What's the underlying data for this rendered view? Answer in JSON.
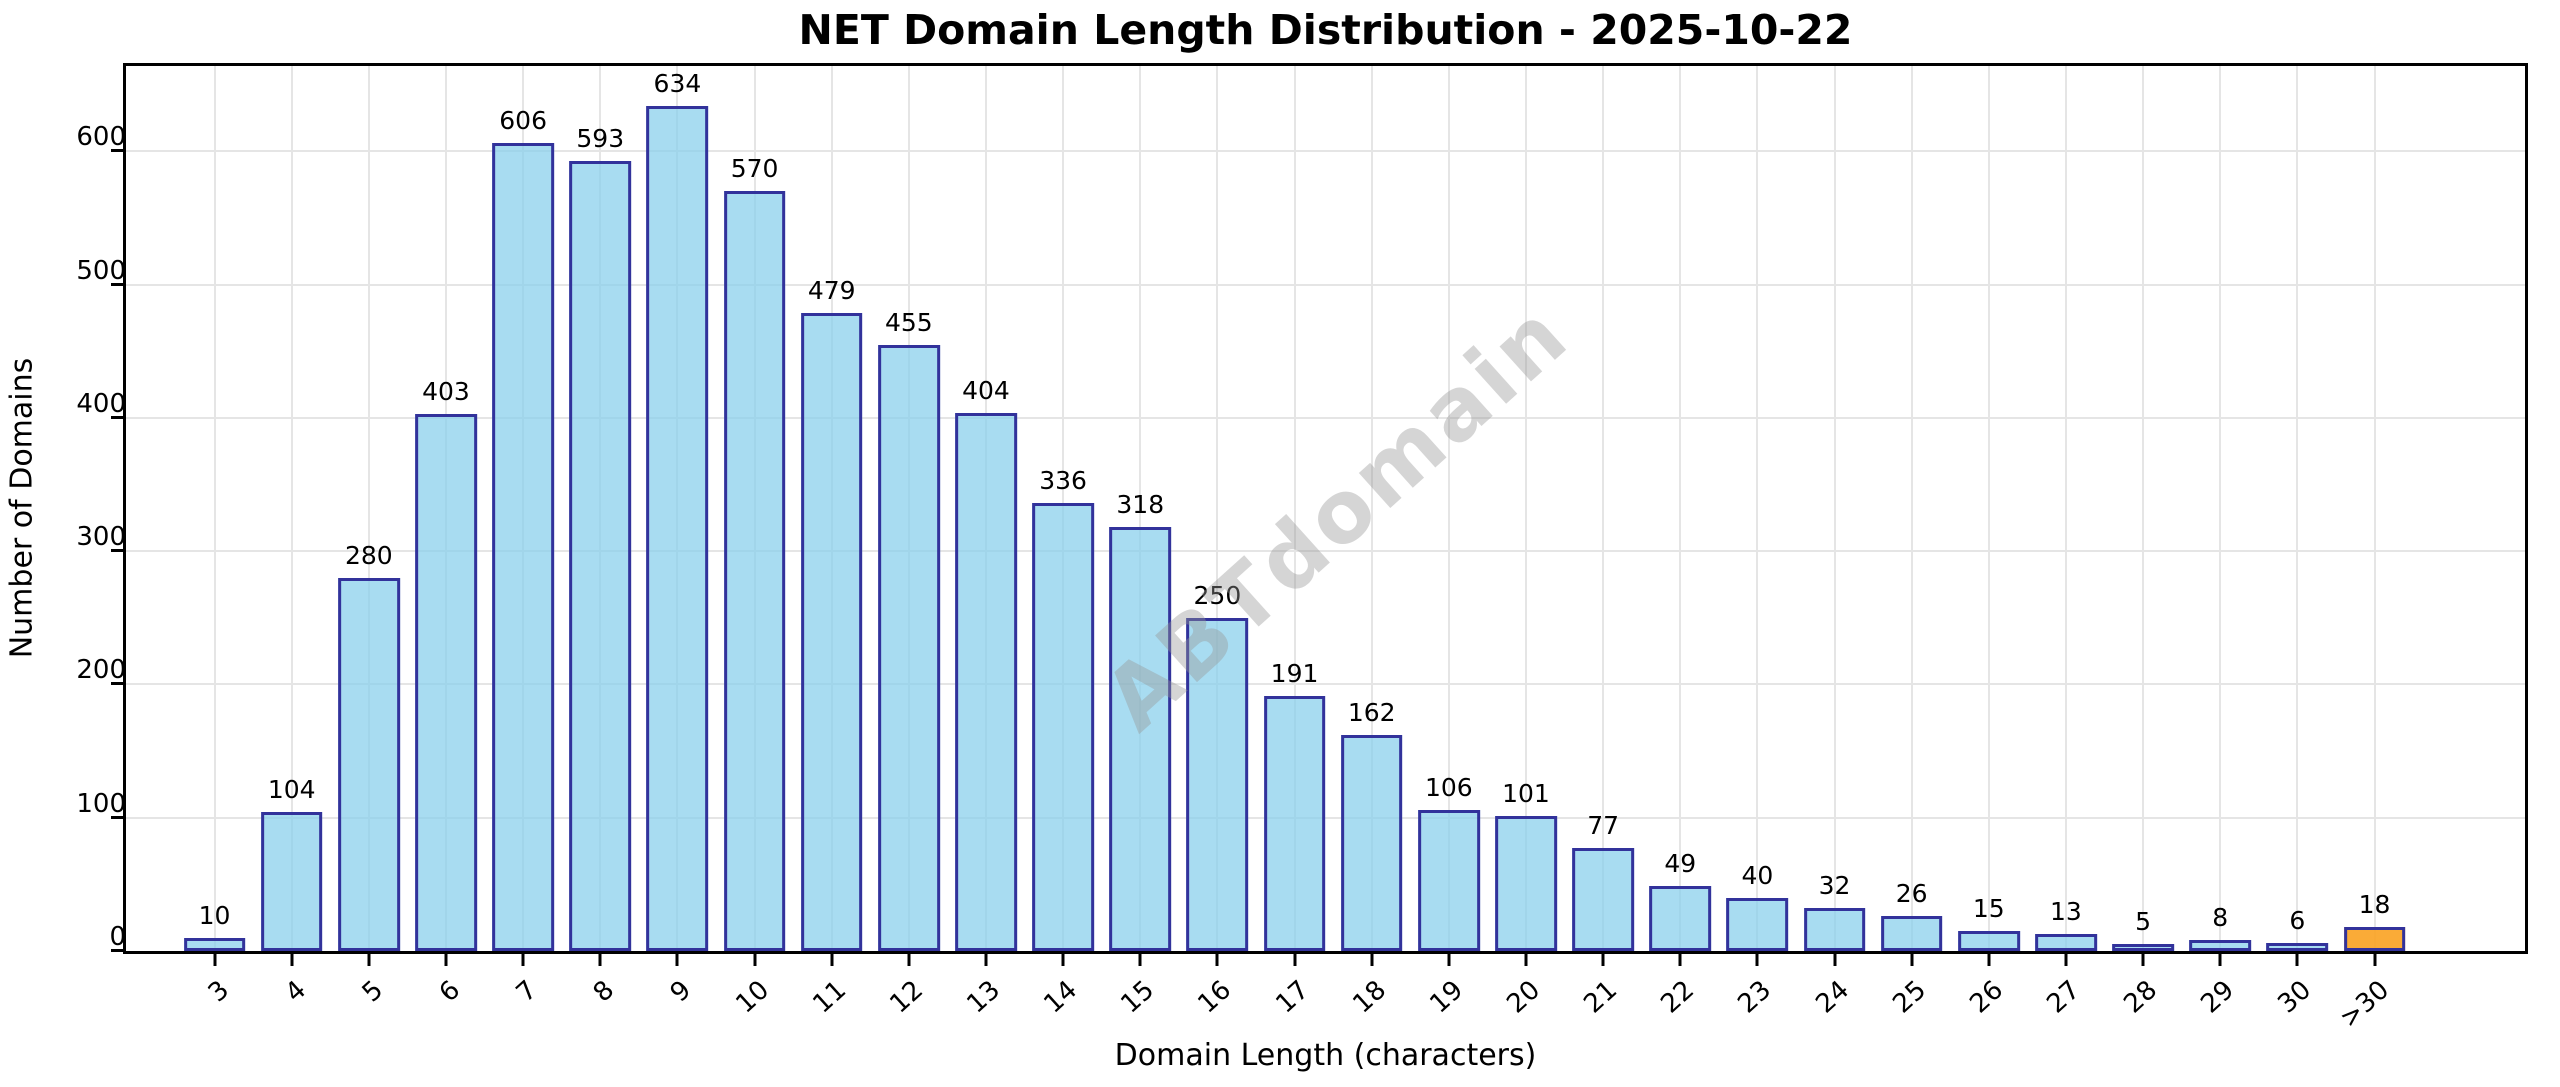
{
  "chart_data": {
    "type": "bar",
    "title": "NET Domain Length Distribution - 2025-10-22",
    "xlabel": "Domain Length (characters)",
    "ylabel": "Number of Domains",
    "categories": [
      "3",
      "4",
      "5",
      "6",
      "7",
      "8",
      "9",
      "10",
      "11",
      "12",
      "13",
      "14",
      "15",
      "16",
      "17",
      "18",
      "19",
      "20",
      "21",
      "22",
      "23",
      "24",
      "25",
      "26",
      "27",
      "28",
      "29",
      "30",
      ">30"
    ],
    "values": [
      10,
      104,
      280,
      403,
      606,
      593,
      634,
      570,
      479,
      455,
      404,
      336,
      318,
      250,
      191,
      162,
      106,
      101,
      77,
      49,
      40,
      32,
      26,
      15,
      13,
      5,
      8,
      6,
      18
    ],
    "yticks": [
      0,
      100,
      200,
      300,
      400,
      500,
      600
    ],
    "ylim": [
      0,
      664
    ],
    "grid": true,
    "legend": "none",
    "watermark": "ABTdomain",
    "bar_fill": "rgba(135,206,235,0.72)",
    "bar_edge": "#32329b",
    "highlight_index": 28,
    "highlight_fill": "rgba(250,164,38,0.92)",
    "grid_color": "#e5e5e5"
  }
}
